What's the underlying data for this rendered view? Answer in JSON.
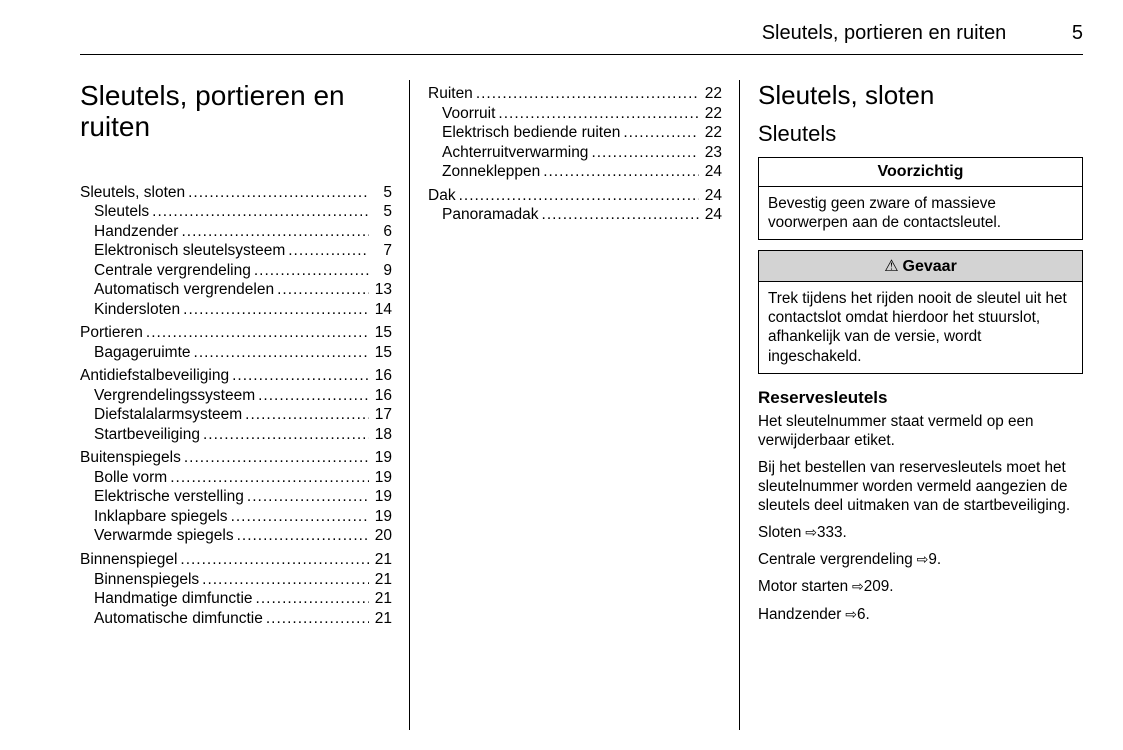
{
  "header": {
    "running_title": "Sleutels, portieren en ruiten",
    "page_number": "5"
  },
  "col1": {
    "chapter_title": "Sleutels, portieren en ruiten",
    "toc": [
      {
        "label": "Sleutels, sloten",
        "page": "5",
        "sub": [
          {
            "label": "Sleutels",
            "page": "5"
          },
          {
            "label": "Handzender",
            "page": "6"
          },
          {
            "label": "Elektronisch sleutelsysteem",
            "page": "7"
          },
          {
            "label": "Centrale vergrendeling",
            "page": "9"
          },
          {
            "label": "Automatisch vergrendelen",
            "page": "13"
          },
          {
            "label": "Kindersloten",
            "page": "14"
          }
        ]
      },
      {
        "label": "Portieren",
        "page": "15",
        "sub": [
          {
            "label": "Bagageruimte",
            "page": "15"
          }
        ]
      },
      {
        "label": "Antidiefstalbeveiliging",
        "page": "16",
        "sub": [
          {
            "label": "Vergrendelingssysteem",
            "page": "16"
          },
          {
            "label": "Diefstalalarmsysteem",
            "page": "17"
          },
          {
            "label": "Startbeveiliging",
            "page": "18"
          }
        ]
      },
      {
        "label": "Buitenspiegels",
        "page": "19",
        "sub": [
          {
            "label": "Bolle vorm",
            "page": "19"
          },
          {
            "label": "Elektrische verstelling",
            "page": "19"
          },
          {
            "label": "Inklapbare spiegels",
            "page": "19"
          },
          {
            "label": "Verwarmde spiegels",
            "page": "20"
          }
        ]
      },
      {
        "label": "Binnenspiegel",
        "page": "21",
        "sub": [
          {
            "label": "Binnenspiegels",
            "page": "21"
          },
          {
            "label": "Handmatige dimfunctie",
            "page": "21"
          },
          {
            "label": "Automatische dimfunctie",
            "page": "21"
          }
        ]
      }
    ]
  },
  "col2": {
    "toc": [
      {
        "label": "Ruiten",
        "page": "22",
        "sub": [
          {
            "label": "Voorruit",
            "page": "22"
          },
          {
            "label": "Elektrisch bediende ruiten",
            "page": "22"
          },
          {
            "label": "Achterruitverwarming",
            "page": "23"
          },
          {
            "label": "Zonnekleppen",
            "page": "24"
          }
        ]
      },
      {
        "label": "Dak",
        "page": "24",
        "sub": [
          {
            "label": "Panoramadak",
            "page": "24"
          }
        ]
      }
    ]
  },
  "col3": {
    "h1": "Sleutels, sloten",
    "h2": "Sleutels",
    "caution_box": {
      "title": "Voorzichtig",
      "body": "Bevestig geen zware of massieve voorwerpen aan de contactsleutel."
    },
    "danger_box": {
      "title": "Gevaar",
      "body": "Trek tijdens het rijden nooit de sleutel uit het contactslot omdat hierdoor het stuurslot, afhankelijk van de versie, wordt ingeschakeld."
    },
    "h3": "Reservesleutels",
    "para1": "Het sleutelnummer staat vermeld op een verwijderbaar etiket.",
    "para2": "Bij het bestellen van reservesleutels moet het sleutelnummer worden vermeld aangezien de sleutels deel uitmaken van de startbeveiliging.",
    "xrefs": [
      {
        "label": "Sloten",
        "page": "333"
      },
      {
        "label": "Centrale vergrendeling",
        "page": "9"
      },
      {
        "label": "Motor starten",
        "page": "209"
      },
      {
        "label": "Handzender",
        "page": "6"
      }
    ]
  }
}
